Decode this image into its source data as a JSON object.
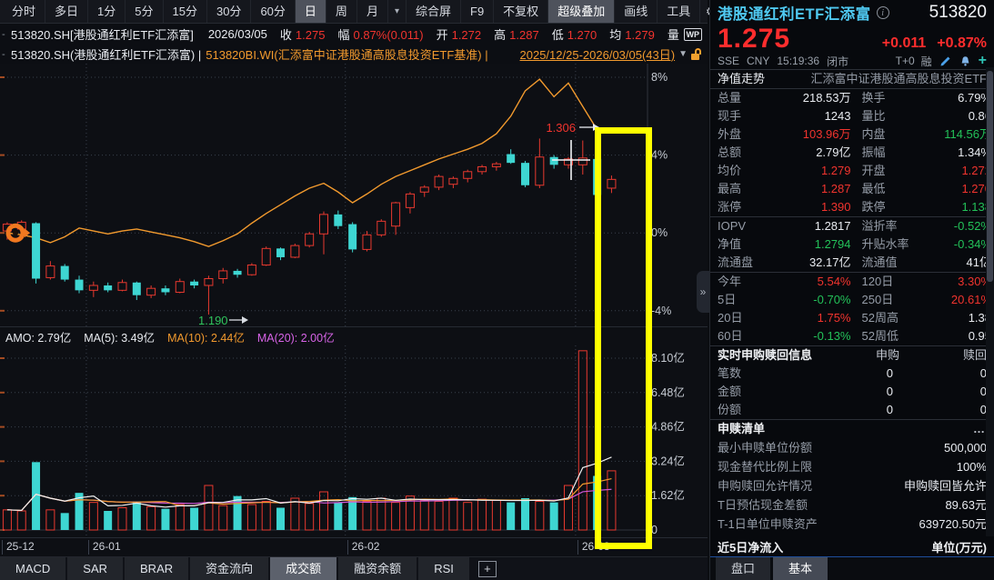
{
  "toolbar": {
    "period_tabs": [
      {
        "label": "分时"
      },
      {
        "label": "多日"
      },
      {
        "label": "1分"
      },
      {
        "label": "5分"
      },
      {
        "label": "15分"
      },
      {
        "label": "30分"
      },
      {
        "label": "60分"
      },
      {
        "label": "日",
        "active": true
      },
      {
        "label": "周"
      },
      {
        "label": "月"
      },
      {
        "label": "▾",
        "dropdown": true
      }
    ],
    "right_items": [
      {
        "label": "综合屏"
      },
      {
        "label": "F9"
      },
      {
        "label": "不复权"
      },
      {
        "label": "超级叠加",
        "active": true
      },
      {
        "label": "画线"
      },
      {
        "label": "工具"
      },
      {
        "icon": "gear-icon",
        "glyph": "⚙"
      },
      {
        "icon": "help-icon",
        "glyph": "?"
      },
      {
        "icon": "chevron-right-icon",
        "glyph": ">"
      }
    ]
  },
  "info_row1": {
    "lead": "-",
    "code_name": "513820.SH[港股通红利ETF汇添富]",
    "date": "2026/03/05",
    "fields": [
      {
        "k": "收",
        "v": "1.275"
      },
      {
        "k": "幅",
        "v": "0.87%(0.011)"
      },
      {
        "k": "开",
        "v": "1.272"
      },
      {
        "k": "高",
        "v": "1.287"
      },
      {
        "k": "低",
        "v": "1.270"
      },
      {
        "k": "均",
        "v": "1.279"
      },
      {
        "k": "量",
        "v": ""
      }
    ],
    "wp_badge": "WP"
  },
  "info_row2": {
    "lead": "-",
    "main_code": "513820.SH(港股通红利ETF汇添富) |",
    "overlay_code": "513820BI.WI(汇添富中证港股通高股息投资ETF基准) |",
    "date_range": "2025/12/25-2026/03/05(43日)",
    "caret": "▼"
  },
  "amo_labels": [
    {
      "text": "AMO: 2.79亿",
      "color": "#e9ecf1"
    },
    {
      "text": "MA(5): 3.49亿",
      "color": "#e9ecf1"
    },
    {
      "text": "MA(10): 2.44亿",
      "color": "#f29a2e"
    },
    {
      "text": "MA(20): 2.00亿",
      "color": "#d864e8"
    }
  ],
  "indicator_tabs": [
    {
      "label": "MACD"
    },
    {
      "label": "SAR"
    },
    {
      "label": "BRAR"
    },
    {
      "label": "资金流向"
    },
    {
      "label": "成交额",
      "active": true
    },
    {
      "label": "融资余额"
    },
    {
      "label": "RSI"
    }
  ],
  "indicator_add_button": "+",
  "chart_data": {
    "type": "candlestick",
    "note": "daily candles plotted on percent-change scale vs benchmark line; range 2025/12/25-2026/03/05 (43 days)",
    "slots": 45,
    "ylim_pct": [
      8.7,
      -4.85
    ],
    "volume_max_yi": 8.7,
    "price_ticks": [
      {
        "label": "8%",
        "v": 8
      },
      {
        "label": "4%",
        "v": 4
      },
      {
        "label": "0%",
        "v": 0
      },
      {
        "label": "-4%",
        "v": -4
      }
    ],
    "volume_ticks": [
      {
        "label": "8.10亿",
        "v": 8.1
      },
      {
        "label": "6.48亿",
        "v": 6.48
      },
      {
        "label": "4.86亿",
        "v": 4.86
      },
      {
        "label": "3.24亿",
        "v": 3.24
      },
      {
        "label": "1.62亿",
        "v": 1.62
      },
      {
        "label": "0",
        "v": 0
      }
    ],
    "x_labels": [
      {
        "index": 0,
        "label": "25-12"
      },
      {
        "index": 6,
        "label": "26-01"
      },
      {
        "index": 24,
        "label": "26-02"
      },
      {
        "index": 40,
        "label": "26-03"
      }
    ],
    "candles_ohlc_pct": [
      [
        0.1,
        0.55,
        -0.35,
        0.45
      ],
      [
        0.2,
        0.65,
        0.05,
        0.55
      ],
      [
        0.5,
        0.55,
        -2.6,
        -2.35
      ],
      [
        -2.3,
        -1.45,
        -2.4,
        -1.7
      ],
      [
        -1.7,
        -1.6,
        -2.5,
        -2.4
      ],
      [
        -2.4,
        -2.2,
        -3.1,
        -2.95
      ],
      [
        -2.95,
        -2.5,
        -3.3,
        -2.7
      ],
      [
        -2.7,
        -2.55,
        -3.05,
        -2.95
      ],
      [
        -2.95,
        -2.4,
        -3.0,
        -2.55
      ],
      [
        -2.55,
        -2.5,
        -3.45,
        -3.2
      ],
      [
        -3.2,
        -2.7,
        -3.35,
        -2.85
      ],
      [
        -2.85,
        -2.7,
        -3.2,
        -3.05
      ],
      [
        -3.05,
        -2.35,
        -3.1,
        -2.5
      ],
      [
        -2.5,
        -2.4,
        -2.85,
        -2.7
      ],
      [
        -2.7,
        -2.2,
        -4.2,
        -2.35
      ],
      [
        -2.35,
        -1.8,
        -2.6,
        -1.95
      ],
      [
        -1.95,
        -1.85,
        -2.3,
        -2.15
      ],
      [
        -2.15,
        -1.55,
        -2.2,
        -1.65
      ],
      [
        -1.65,
        -0.7,
        -1.7,
        -0.8
      ],
      [
        -0.8,
        -0.75,
        -1.4,
        -1.25
      ],
      [
        -1.25,
        -0.55,
        -1.3,
        -0.65
      ],
      [
        -0.65,
        0.05,
        -0.75,
        -0.05
      ],
      [
        -0.05,
        1.1,
        -1.1,
        0.95
      ],
      [
        0.95,
        1.15,
        0.2,
        0.35
      ],
      [
        0.45,
        0.55,
        -1.0,
        -0.85
      ],
      [
        -0.85,
        0.1,
        -0.95,
        -0.1
      ],
      [
        -0.1,
        0.7,
        -0.2,
        0.6
      ],
      [
        0.35,
        1.6,
        -0.1,
        1.55
      ],
      [
        1.3,
        2.1,
        1.0,
        2.0
      ],
      [
        2.1,
        2.45,
        1.85,
        2.35
      ],
      [
        2.35,
        3.0,
        2.2,
        2.9
      ],
      [
        2.5,
        2.9,
        2.3,
        2.8
      ],
      [
        2.8,
        3.25,
        2.6,
        3.15
      ],
      [
        3.15,
        3.5,
        3.0,
        3.4
      ],
      [
        3.4,
        3.65,
        3.2,
        3.55
      ],
      [
        4.05,
        4.3,
        3.55,
        3.6
      ],
      [
        3.6,
        3.7,
        2.35,
        2.45
      ],
      [
        2.45,
        4.85,
        2.3,
        3.9
      ],
      [
        3.9,
        4.0,
        3.3,
        3.5
      ],
      [
        3.5,
        3.9,
        3.3,
        3.8
      ],
      [
        3.5,
        4.75,
        3.0,
        3.85
      ],
      [
        3.8,
        3.95,
        1.3,
        1.95
      ],
      [
        2.3,
        2.95,
        2.05,
        2.75
      ]
    ],
    "volumes_yi": [
      0.95,
      0.9,
      3.2,
      0.95,
      0.8,
      1.75,
      1.3,
      0.9,
      1.05,
      1.35,
      1.1,
      1.0,
      1.2,
      1.05,
      2.1,
      1.15,
      1.6,
      1.2,
      1.35,
      1.05,
      1.5,
      1.25,
      1.8,
      1.3,
      1.55,
      1.35,
      1.5,
      1.3,
      1.6,
      1.4,
      1.35,
      1.5,
      1.3,
      1.45,
      1.4,
      1.3,
      1.5,
      1.35,
      1.3,
      2.1,
      8.45,
      2.55,
      2.79
    ],
    "benchmark_pct": [
      0.0,
      -0.1,
      -0.25,
      -0.5,
      -0.2,
      0.25,
      0.1,
      -0.05,
      0.1,
      0.2,
      0.05,
      -0.1,
      -0.25,
      -0.45,
      -0.7,
      -0.4,
      -0.05,
      0.5,
      1.0,
      1.45,
      1.9,
      2.3,
      2.55,
      2.1,
      1.55,
      2.0,
      2.5,
      2.9,
      3.2,
      3.5,
      3.8,
      4.05,
      4.3,
      4.6,
      5.1,
      6.0,
      7.3,
      7.9,
      7.0,
      7.7,
      6.5,
      5.3,
      null
    ],
    "annotations": {
      "high_label": "1.306",
      "low_label": "1.190",
      "highlight_rectangle_color": "#ffff00",
      "crosshair": true
    },
    "colors": {
      "up": "#e8392f",
      "down": "#3ed6d2",
      "benchmark": "#f29a2e",
      "vol_ma5": "#f0f0f0",
      "vol_ma10": "#f29a2e",
      "vol_ma20": "#d058d8"
    }
  },
  "right_panel": {
    "name": "港股通红利ETF汇添富",
    "code": "513820",
    "price": "1.275",
    "change": "+0.011",
    "change_pct": "+0.87%",
    "exchange": "SSE",
    "currency": "CNY",
    "time": "15:19:36",
    "market_status": "闭市",
    "trade_mode": "T+0",
    "margin_flag": "融",
    "fund_line_label": "净值走势",
    "fund_full_name": "汇添富中证港股通高股息投资ETF",
    "stats_rows": [
      {
        "l1": "总量",
        "v1": "218.53万",
        "c1": "w",
        "l2": "换手",
        "v2": "6.79%",
        "c2": "w"
      },
      {
        "l1": "现手",
        "v1": "1243",
        "c1": "w",
        "l2": "量比",
        "v2": "0.86",
        "c2": "w"
      },
      {
        "l1": "外盘",
        "v1": "103.96万",
        "c1": "r",
        "l2": "内盘",
        "v2": "114.56万",
        "c2": "g"
      },
      {
        "l1": "总额",
        "v1": "2.79亿",
        "c1": "w",
        "l2": "振幅",
        "v2": "1.34%",
        "c2": "w"
      },
      {
        "l1": "均价",
        "v1": "1.279",
        "c1": "r",
        "l2": "开盘",
        "v2": "1.272",
        "c2": "r"
      },
      {
        "l1": "最高",
        "v1": "1.287",
        "c1": "r",
        "l2": "最低",
        "v2": "1.270",
        "c2": "r"
      },
      {
        "l1": "涨停",
        "v1": "1.390",
        "c1": "r",
        "l2": "跌停",
        "v2": "1.138",
        "c2": "g",
        "sep": true
      },
      {
        "l1": "IOPV",
        "v1": "1.2817",
        "c1": "w",
        "l2": "溢折率",
        "v2": "-0.52%",
        "c2": "g"
      },
      {
        "l1": "净值",
        "v1": "1.2794",
        "c1": "g",
        "l2": "升贴水率",
        "v2": "-0.34%",
        "c2": "g"
      },
      {
        "l1": "流通盘",
        "v1": "32.17亿",
        "c1": "w",
        "l2": "流通值",
        "v2": "41亿",
        "c2": "w",
        "sep": true
      },
      {
        "l1": "今年",
        "v1": "5.54%",
        "c1": "r",
        "l2": "120日",
        "v2": "3.30%",
        "c2": "r"
      },
      {
        "l1": "5日",
        "v1": "-0.70%",
        "c1": "g",
        "l2": "250日",
        "v2": "20.61%",
        "c2": "r"
      },
      {
        "l1": "20日",
        "v1": "1.75%",
        "c1": "r",
        "l2": "52周高",
        "v2": "1.38",
        "c2": "w"
      },
      {
        "l1": "60日",
        "v1": "-0.13%",
        "c1": "g",
        "l2": "52周低",
        "v2": "0.95",
        "c2": "w",
        "sep": true
      }
    ],
    "subscription": {
      "title": "实时申购赎回信息",
      "col1": "申购",
      "col2": "赎回",
      "rows": [
        {
          "label": "笔数",
          "v1": "0",
          "v2": "0"
        },
        {
          "label": "金额",
          "v1": "0",
          "v2": "0"
        },
        {
          "label": "份额",
          "v1": "0",
          "v2": "0"
        }
      ]
    },
    "redemption_list": {
      "title": "申赎清单",
      "more": "…",
      "rows": [
        {
          "label": "最小申赎单位份额",
          "value": "500,000"
        },
        {
          "label": "现金替代比例上限",
          "value": "100%"
        },
        {
          "label": "申购赎回允许情况",
          "value": "申购赎回皆允许"
        },
        {
          "label": "T日预估现金差额",
          "value": "89.63元"
        },
        {
          "label": "T-1日单位申赎资产",
          "value": "639720.50元"
        }
      ]
    },
    "netflow_title": "近5日净流入",
    "netflow_unit": "单位(万元)",
    "tabs": [
      {
        "label": "盘口"
      },
      {
        "label": "基本",
        "active": true
      }
    ],
    "collapse_glyph": "»"
  }
}
